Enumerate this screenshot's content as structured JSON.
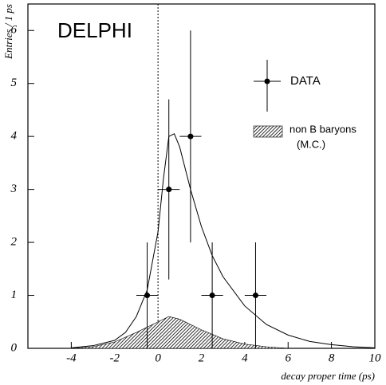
{
  "chart_data": {
    "type": "combo",
    "title": "DELPHI",
    "x_label": "decay proper time (ps)",
    "y_label": "Entries / 1 ps",
    "xlim": [
      -6,
      10
    ],
    "ylim": [
      0,
      6.5
    ],
    "xticks": [
      -4,
      -2,
      0,
      2,
      4,
      6,
      8,
      10
    ],
    "yticks": [
      0,
      1,
      2,
      3,
      4,
      5,
      6
    ],
    "series": [
      {
        "name": "non B baryons",
        "type": "area",
        "color": "#000000",
        "x": [
          -4,
          -3,
          -2,
          -1,
          0,
          0.5,
          1,
          2,
          3,
          4,
          5,
          6
        ],
        "values": [
          0,
          0.03,
          0.12,
          0.3,
          0.5,
          0.6,
          0.55,
          0.35,
          0.18,
          0.08,
          0.03,
          0
        ]
      },
      {
        "type": "line",
        "color": "#000000",
        "x": [
          -4,
          -3,
          -2,
          -1.5,
          -1,
          -0.5,
          0,
          0.25,
          0.5,
          0.75,
          1,
          1.5,
          2,
          2.5,
          3,
          4,
          5,
          6,
          7,
          8,
          9,
          10
        ],
        "values": [
          0.01,
          0.05,
          0.15,
          0.3,
          0.6,
          1.1,
          2.2,
          3.2,
          4.0,
          4.05,
          3.8,
          3.0,
          2.3,
          1.75,
          1.35,
          0.8,
          0.45,
          0.25,
          0.13,
          0.07,
          0.03,
          0.01
        ]
      },
      {
        "name": "DATA",
        "type": "scatter",
        "color": "#000000",
        "x": [
          -0.5,
          0.5,
          1.5,
          2.5,
          4.5
        ],
        "values": [
          1,
          3,
          4,
          1,
          1
        ],
        "xerr": [
          0.5,
          0.5,
          0.5,
          0.5,
          0.5
        ],
        "yerr": [
          1,
          1.7,
          2,
          1,
          1
        ]
      }
    ],
    "legend_note": "(M.C.)"
  }
}
